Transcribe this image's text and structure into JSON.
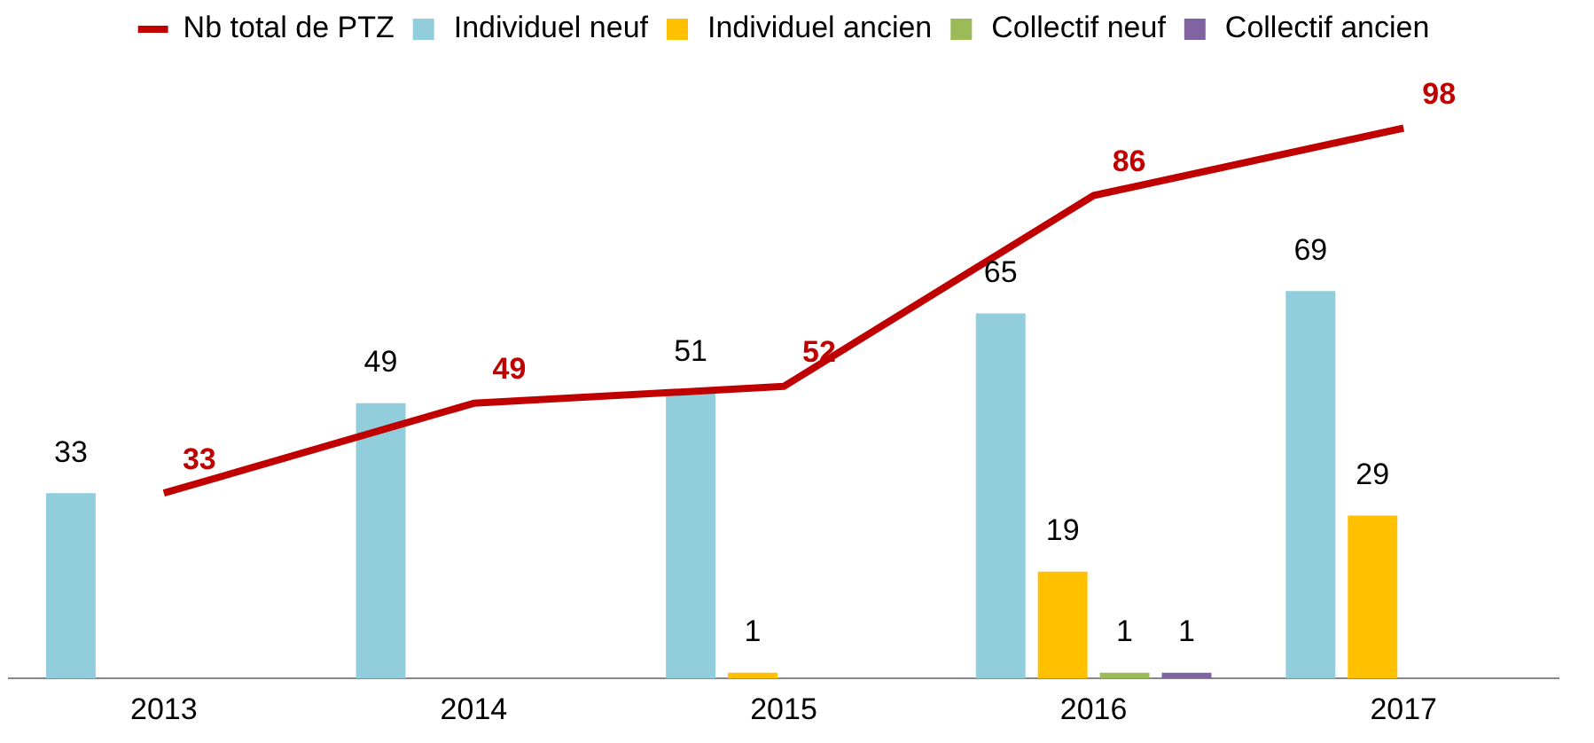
{
  "chart_data": {
    "type": "bar",
    "categories": [
      "2013",
      "2014",
      "2015",
      "2016",
      "2017"
    ],
    "series": [
      {
        "name": "Individuel neuf",
        "color": "#92cddc",
        "values": [
          33,
          49,
          51,
          65,
          69
        ]
      },
      {
        "name": "Individuel ancien",
        "color": "#ffc000",
        "values": [
          null,
          null,
          1,
          19,
          29
        ]
      },
      {
        "name": "Collectif neuf",
        "color": "#9bbb59",
        "values": [
          null,
          null,
          null,
          1,
          null
        ]
      },
      {
        "name": "Collectif ancien",
        "color": "#8064a2",
        "values": [
          null,
          null,
          null,
          1,
          null
        ]
      },
      {
        "name": "Nb total de PTZ",
        "type": "line",
        "color": "#c00000",
        "values": [
          33,
          49,
          52,
          86,
          98
        ]
      }
    ],
    "data_labels": true,
    "legend": "top",
    "grid": false,
    "marker": "none"
  }
}
